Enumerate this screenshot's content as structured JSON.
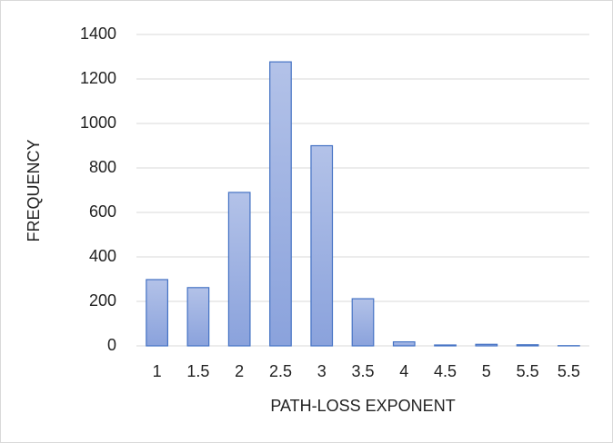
{
  "chart_data": {
    "type": "bar",
    "categories": [
      "1",
      "1.5",
      "2",
      "2.5",
      "3",
      "3.5",
      "4",
      "4.5",
      "5",
      "5.5",
      "5.5"
    ],
    "values": [
      298,
      262,
      690,
      1277,
      900,
      212,
      18,
      4,
      7,
      5,
      1
    ],
    "color": "#4472c4",
    "x_label": "PATH-LOSS EXPONENT",
    "y_label": "FREQUENCY",
    "ylim": [
      0,
      1400
    ],
    "yticks": [
      0,
      200,
      400,
      600,
      800,
      1000,
      1200,
      1400
    ],
    "grid": true
  }
}
